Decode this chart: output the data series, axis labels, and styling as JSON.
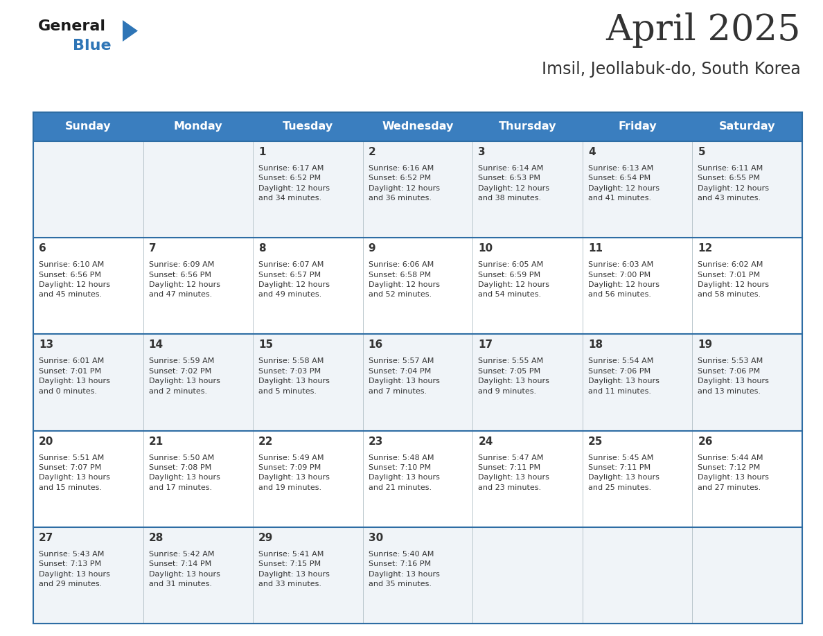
{
  "title": "April 2025",
  "subtitle": "Imsil, Jeollabuk-do, South Korea",
  "header_bg": "#3A7EBF",
  "header_text_color": "#FFFFFF",
  "cell_bg_odd": "#F0F4F8",
  "cell_bg_even": "#FFFFFF",
  "border_color": "#2E6DA4",
  "text_color": "#333333",
  "days_of_week": [
    "Sunday",
    "Monday",
    "Tuesday",
    "Wednesday",
    "Thursday",
    "Friday",
    "Saturday"
  ],
  "weeks": [
    [
      {
        "day": "",
        "info": ""
      },
      {
        "day": "",
        "info": ""
      },
      {
        "day": "1",
        "info": "Sunrise: 6:17 AM\nSunset: 6:52 PM\nDaylight: 12 hours\nand 34 minutes."
      },
      {
        "day": "2",
        "info": "Sunrise: 6:16 AM\nSunset: 6:52 PM\nDaylight: 12 hours\nand 36 minutes."
      },
      {
        "day": "3",
        "info": "Sunrise: 6:14 AM\nSunset: 6:53 PM\nDaylight: 12 hours\nand 38 minutes."
      },
      {
        "day": "4",
        "info": "Sunrise: 6:13 AM\nSunset: 6:54 PM\nDaylight: 12 hours\nand 41 minutes."
      },
      {
        "day": "5",
        "info": "Sunrise: 6:11 AM\nSunset: 6:55 PM\nDaylight: 12 hours\nand 43 minutes."
      }
    ],
    [
      {
        "day": "6",
        "info": "Sunrise: 6:10 AM\nSunset: 6:56 PM\nDaylight: 12 hours\nand 45 minutes."
      },
      {
        "day": "7",
        "info": "Sunrise: 6:09 AM\nSunset: 6:56 PM\nDaylight: 12 hours\nand 47 minutes."
      },
      {
        "day": "8",
        "info": "Sunrise: 6:07 AM\nSunset: 6:57 PM\nDaylight: 12 hours\nand 49 minutes."
      },
      {
        "day": "9",
        "info": "Sunrise: 6:06 AM\nSunset: 6:58 PM\nDaylight: 12 hours\nand 52 minutes."
      },
      {
        "day": "10",
        "info": "Sunrise: 6:05 AM\nSunset: 6:59 PM\nDaylight: 12 hours\nand 54 minutes."
      },
      {
        "day": "11",
        "info": "Sunrise: 6:03 AM\nSunset: 7:00 PM\nDaylight: 12 hours\nand 56 minutes."
      },
      {
        "day": "12",
        "info": "Sunrise: 6:02 AM\nSunset: 7:01 PM\nDaylight: 12 hours\nand 58 minutes."
      }
    ],
    [
      {
        "day": "13",
        "info": "Sunrise: 6:01 AM\nSunset: 7:01 PM\nDaylight: 13 hours\nand 0 minutes."
      },
      {
        "day": "14",
        "info": "Sunrise: 5:59 AM\nSunset: 7:02 PM\nDaylight: 13 hours\nand 2 minutes."
      },
      {
        "day": "15",
        "info": "Sunrise: 5:58 AM\nSunset: 7:03 PM\nDaylight: 13 hours\nand 5 minutes."
      },
      {
        "day": "16",
        "info": "Sunrise: 5:57 AM\nSunset: 7:04 PM\nDaylight: 13 hours\nand 7 minutes."
      },
      {
        "day": "17",
        "info": "Sunrise: 5:55 AM\nSunset: 7:05 PM\nDaylight: 13 hours\nand 9 minutes."
      },
      {
        "day": "18",
        "info": "Sunrise: 5:54 AM\nSunset: 7:06 PM\nDaylight: 13 hours\nand 11 minutes."
      },
      {
        "day": "19",
        "info": "Sunrise: 5:53 AM\nSunset: 7:06 PM\nDaylight: 13 hours\nand 13 minutes."
      }
    ],
    [
      {
        "day": "20",
        "info": "Sunrise: 5:51 AM\nSunset: 7:07 PM\nDaylight: 13 hours\nand 15 minutes."
      },
      {
        "day": "21",
        "info": "Sunrise: 5:50 AM\nSunset: 7:08 PM\nDaylight: 13 hours\nand 17 minutes."
      },
      {
        "day": "22",
        "info": "Sunrise: 5:49 AM\nSunset: 7:09 PM\nDaylight: 13 hours\nand 19 minutes."
      },
      {
        "day": "23",
        "info": "Sunrise: 5:48 AM\nSunset: 7:10 PM\nDaylight: 13 hours\nand 21 minutes."
      },
      {
        "day": "24",
        "info": "Sunrise: 5:47 AM\nSunset: 7:11 PM\nDaylight: 13 hours\nand 23 minutes."
      },
      {
        "day": "25",
        "info": "Sunrise: 5:45 AM\nSunset: 7:11 PM\nDaylight: 13 hours\nand 25 minutes."
      },
      {
        "day": "26",
        "info": "Sunrise: 5:44 AM\nSunset: 7:12 PM\nDaylight: 13 hours\nand 27 minutes."
      }
    ],
    [
      {
        "day": "27",
        "info": "Sunrise: 5:43 AM\nSunset: 7:13 PM\nDaylight: 13 hours\nand 29 minutes."
      },
      {
        "day": "28",
        "info": "Sunrise: 5:42 AM\nSunset: 7:14 PM\nDaylight: 13 hours\nand 31 minutes."
      },
      {
        "day": "29",
        "info": "Sunrise: 5:41 AM\nSunset: 7:15 PM\nDaylight: 13 hours\nand 33 minutes."
      },
      {
        "day": "30",
        "info": "Sunrise: 5:40 AM\nSunset: 7:16 PM\nDaylight: 13 hours\nand 35 minutes."
      },
      {
        "day": "",
        "info": ""
      },
      {
        "day": "",
        "info": ""
      },
      {
        "day": "",
        "info": ""
      }
    ]
  ],
  "logo_text_general": "General",
  "logo_text_blue": "Blue",
  "logo_color_general": "#1a1a1a",
  "logo_color_blue": "#2E75B6",
  "logo_triangle_color": "#2E75B6",
  "fig_width": 11.88,
  "fig_height": 9.18,
  "dpi": 100
}
